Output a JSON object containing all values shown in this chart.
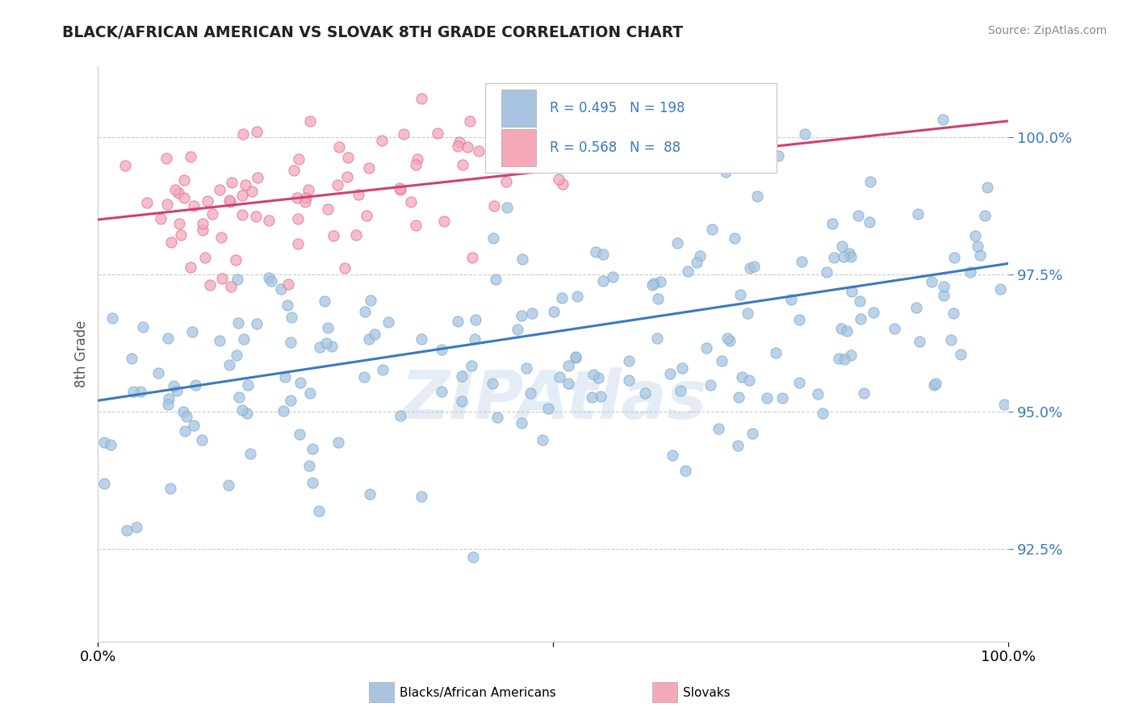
{
  "title": "BLACK/AFRICAN AMERICAN VS SLOVAK 8TH GRADE CORRELATION CHART",
  "source": "Source: ZipAtlas.com",
  "ylabel": "8th Grade",
  "y_tick_labels": [
    "92.5%",
    "95.0%",
    "97.5%",
    "100.0%"
  ],
  "y_tick_values": [
    0.925,
    0.95,
    0.975,
    1.0
  ],
  "x_lim": [
    0.0,
    1.0
  ],
  "y_lim": [
    0.908,
    1.013
  ],
  "blue_color": "#a8c4e0",
  "blue_edge_color": "#7aafd0",
  "pink_color": "#f4a8b8",
  "pink_edge_color": "#e07090",
  "blue_line_color": "#3a7abf",
  "pink_line_color": "#d04070",
  "legend_R1": "0.495",
  "legend_N1": "198",
  "legend_R2": "0.568",
  "legend_N2": " 88",
  "legend_label1": "Blacks/African Americans",
  "legend_label2": "Slovaks",
  "watermark": "ZIPAtlas",
  "title_color": "#222222",
  "source_color": "#888888",
  "axis_label_color": "#3a7abf",
  "ylabel_color": "#555555",
  "grid_color": "#cccccc",
  "blue_slope": 0.025,
  "blue_intercept": 0.952,
  "pink_slope": 0.018,
  "pink_intercept": 0.985
}
